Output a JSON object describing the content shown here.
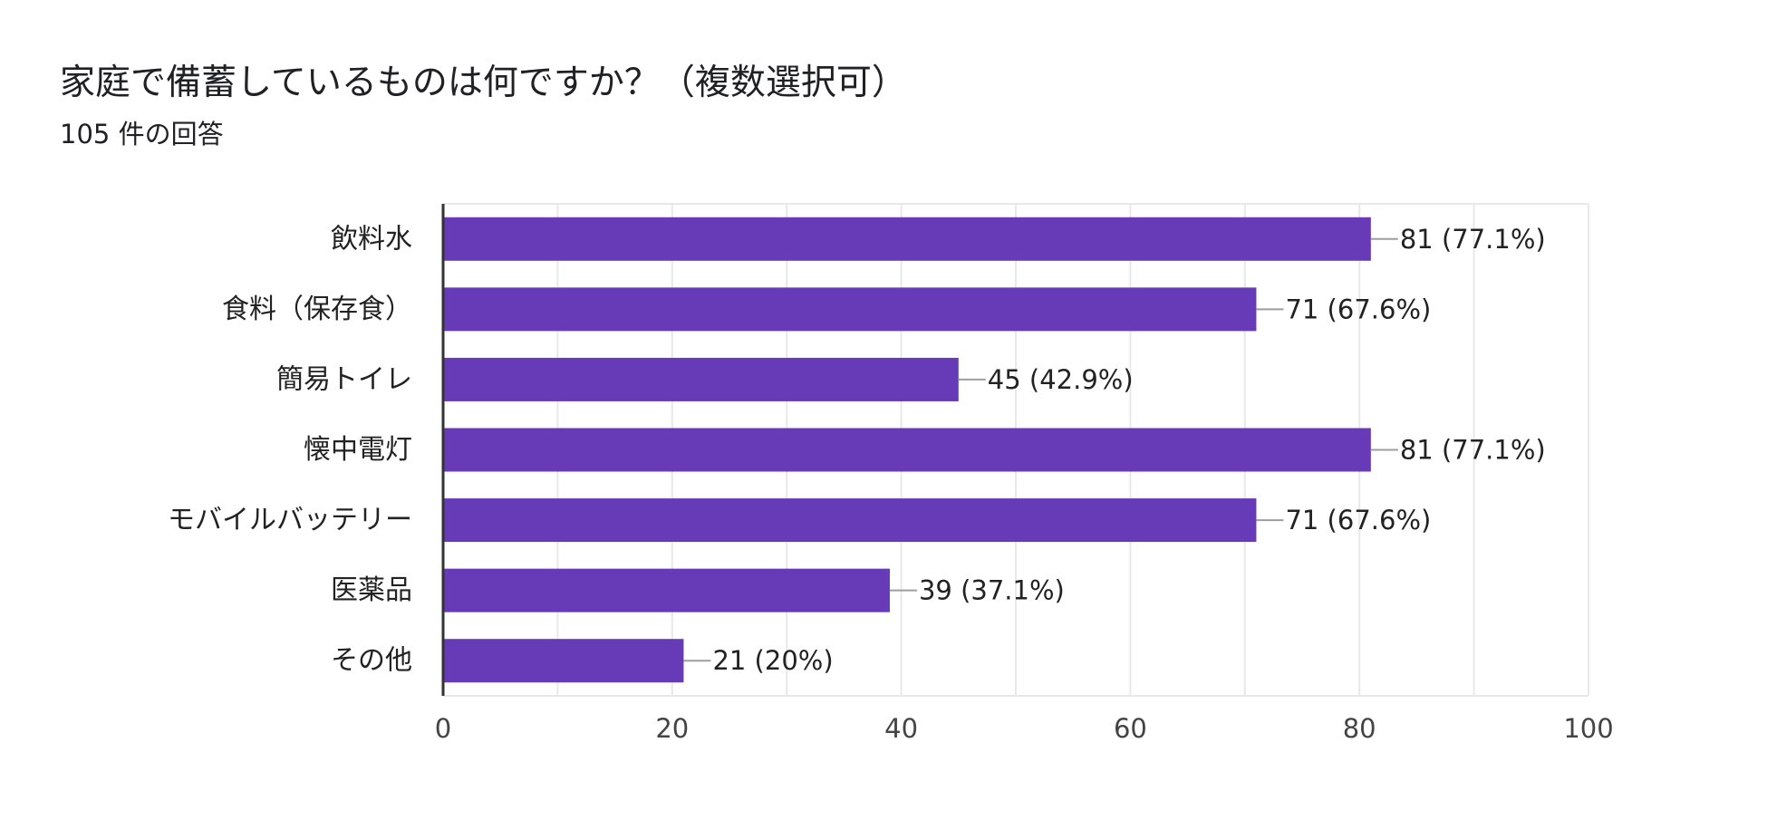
{
  "header": {
    "title": "家庭で備蓄しているものは何ですか？（複数選択可）",
    "subtitle": "105 件の回答"
  },
  "colors": {
    "bar": "#673AB7",
    "grid": "#E8E8E8",
    "axis": "#333333",
    "leader": "#9E9E9E"
  },
  "chart_data": {
    "type": "bar",
    "orientation": "horizontal",
    "title": "家庭で備蓄しているものは何ですか？（複数選択可）",
    "subtitle": "105 件の回答",
    "categories": [
      "飲料水",
      "食料（保存食）",
      "簡易トイレ",
      "懐中電灯",
      "モバイルバッテリー",
      "医薬品",
      "その他"
    ],
    "values": [
      81,
      71,
      45,
      81,
      71,
      39,
      21
    ],
    "data_labels": [
      "81 (77.1%)",
      "71 (67.6%)",
      "45 (42.9%)",
      "81 (77.1%)",
      "71 (67.6%)",
      "39 (37.1%)",
      "21 (20%)"
    ],
    "xlim": [
      0,
      100
    ],
    "x_ticks": [
      0,
      20,
      40,
      60,
      80,
      100
    ],
    "x_tick_labels": [
      "0",
      "20",
      "40",
      "60",
      "80",
      "100"
    ],
    "minor_grid_step": 10,
    "grid": true,
    "legend": "none",
    "xlabel": "",
    "ylabel": ""
  }
}
